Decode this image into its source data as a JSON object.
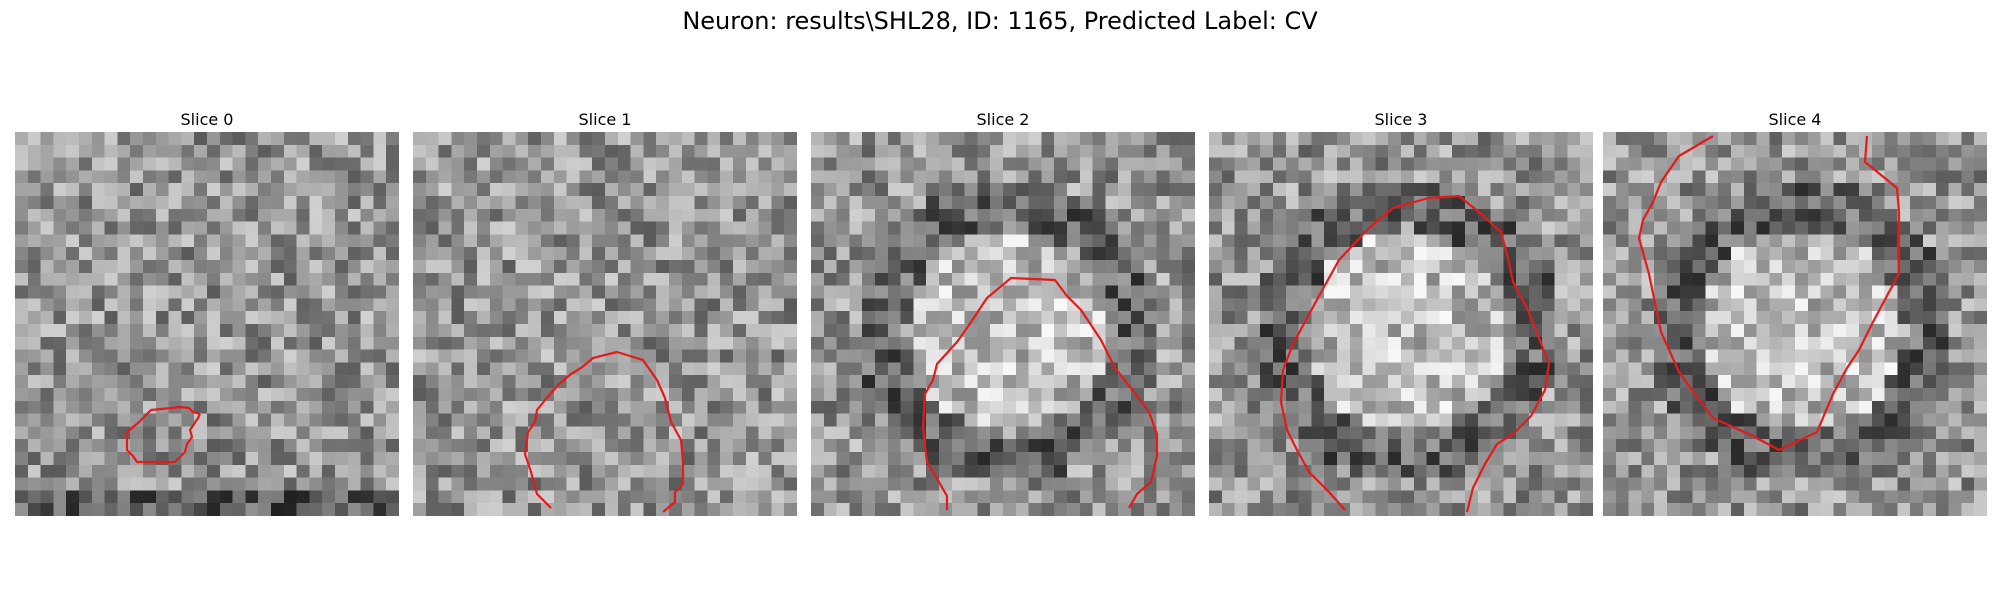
{
  "figure": {
    "title": "Neuron: results\\SHL28, ID: 1165, Predicted Label: CV"
  },
  "panels": [
    {
      "title": "Slice 0"
    },
    {
      "title": "Slice 1"
    },
    {
      "title": "Slice 2"
    },
    {
      "title": "Slice 3"
    },
    {
      "title": "Slice 4"
    }
  ],
  "style": {
    "contour_color": "#e41a1c",
    "colormap": "gray"
  }
}
